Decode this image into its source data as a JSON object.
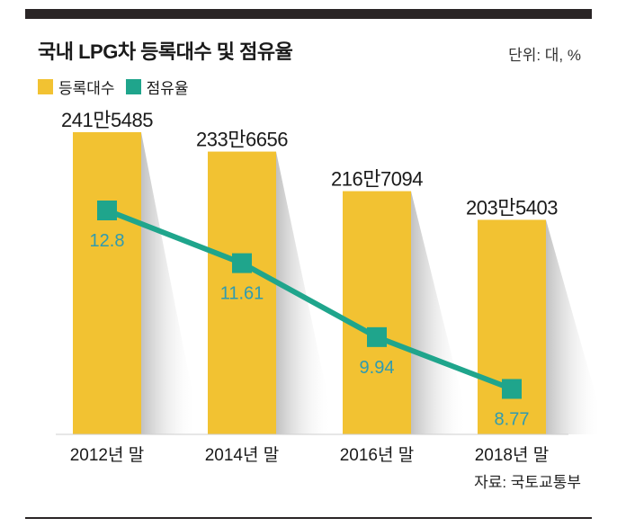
{
  "header": {
    "title": "국내 LPG차 등록대수 및 점유율",
    "unit": "단위: 대, %"
  },
  "legend": {
    "items": [
      {
        "label": "등록대수",
        "color": "#f2c232"
      },
      {
        "label": "점유율",
        "color": "#1fa58c"
      }
    ]
  },
  "source": "자료: 국토교통부",
  "chart_data": {
    "type": "bar",
    "categories": [
      "2012년 말",
      "2014년 말",
      "2016년 말",
      "2018년 말"
    ],
    "series": [
      {
        "name": "등록대수",
        "type": "bar",
        "values": [
          2415485,
          2336656,
          2167094,
          2035403
        ],
        "labels": [
          "241만5485",
          "233만6656",
          "216만7094",
          "203만5403"
        ],
        "color": "#f2c232"
      },
      {
        "name": "점유율",
        "type": "line",
        "values": [
          12.8,
          11.61,
          9.94,
          8.77
        ],
        "labels": [
          "12.8",
          "11.61",
          "9.94",
          "8.77"
        ],
        "color": "#1fa58c"
      }
    ],
    "title": "국내 LPG차 등록대수 및 점유율",
    "legend_position": "top-left",
    "grid": false
  }
}
